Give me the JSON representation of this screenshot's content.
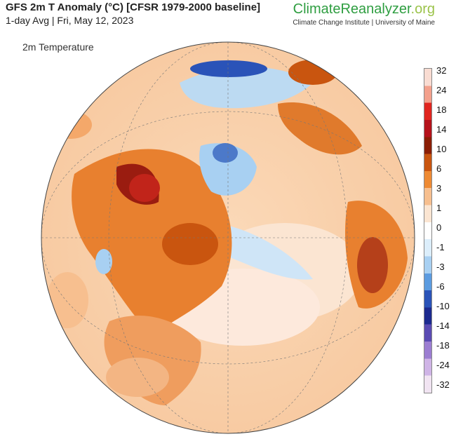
{
  "header": {
    "title": "GFS 2m T Anomaly (°C) [CFSR 1979-2000 baseline]",
    "subtitle": "1-day Avg | Fri, May 12, 2023"
  },
  "brand": {
    "name_main": "ClimateReanalyzer",
    "name_suffix": ".org",
    "affiliation": "Climate Change Institute | University of Maine"
  },
  "map": {
    "variable_label": "2m Temperature",
    "projection": "orthographic"
  },
  "colorbar": {
    "ticks": [
      "32",
      "24",
      "18",
      "14",
      "10",
      "6",
      "3",
      "1",
      "0",
      "-1",
      "-3",
      "-6",
      "-10",
      "-14",
      "-18",
      "-24",
      "-32"
    ],
    "colors": [
      "#f9dcd2",
      "#f3a08c",
      "#e0251f",
      "#b5121b",
      "#8b1e05",
      "#c9550f",
      "#ee8a33",
      "#f7bf8f",
      "#fbe5d2",
      "#ffffff",
      "#dceefb",
      "#a8d0f2",
      "#5b9be0",
      "#2a53b8",
      "#1c2a8f",
      "#5a4bb3",
      "#9b7dd1",
      "#cfb4e6",
      "#f1e4f2"
    ]
  }
}
